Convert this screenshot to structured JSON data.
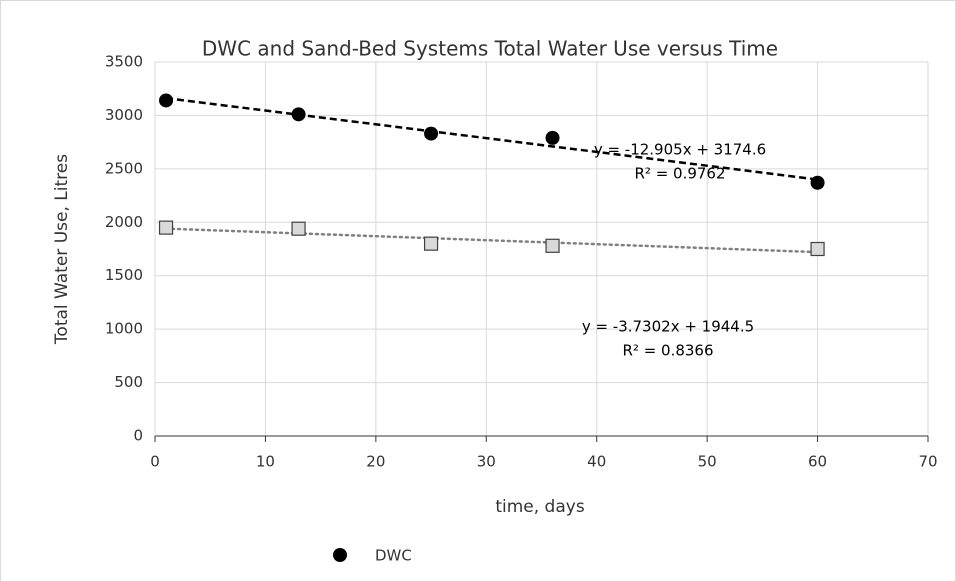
{
  "chart_data": {
    "type": "scatter",
    "title": "DWC and Sand-Bed Systems Total Water Use versus Time",
    "xlabel": "time, days",
    "ylabel": "Total Water Use, Litres",
    "xlim": [
      0,
      70
    ],
    "xticks": [
      0,
      10,
      20,
      30,
      40,
      50,
      60,
      70
    ],
    "ylim": [
      0,
      3500
    ],
    "yticks": [
      0,
      500,
      1000,
      1500,
      2000,
      2500,
      3000,
      3500
    ],
    "grid": true,
    "legend": "bottom",
    "series": [
      {
        "name": "DWC",
        "color": "#000000",
        "marker": "circle",
        "x": [
          1,
          13,
          25,
          36,
          60
        ],
        "values": [
          3140,
          3010,
          2830,
          2790,
          2370
        ],
        "trendline": {
          "slope": -12.905,
          "intercept": 3174.6,
          "style": "dashed",
          "color": "#000000",
          "label": "y = -12.905x + 3174.6",
          "r2_label": "R² = 0.9762"
        }
      },
      {
        "color": "#d9d9d9",
        "marker": "square",
        "x": [
          1,
          13,
          25,
          36,
          60
        ],
        "values": [
          1950,
          1940,
          1800,
          1780,
          1750
        ],
        "trendline": {
          "slope": -3.7302,
          "intercept": 1944.5,
          "style": "dotted",
          "color": "#808080",
          "label": "y = -3.7302x + 1944.5",
          "r2_label": "R² = 0.8366"
        }
      }
    ]
  }
}
